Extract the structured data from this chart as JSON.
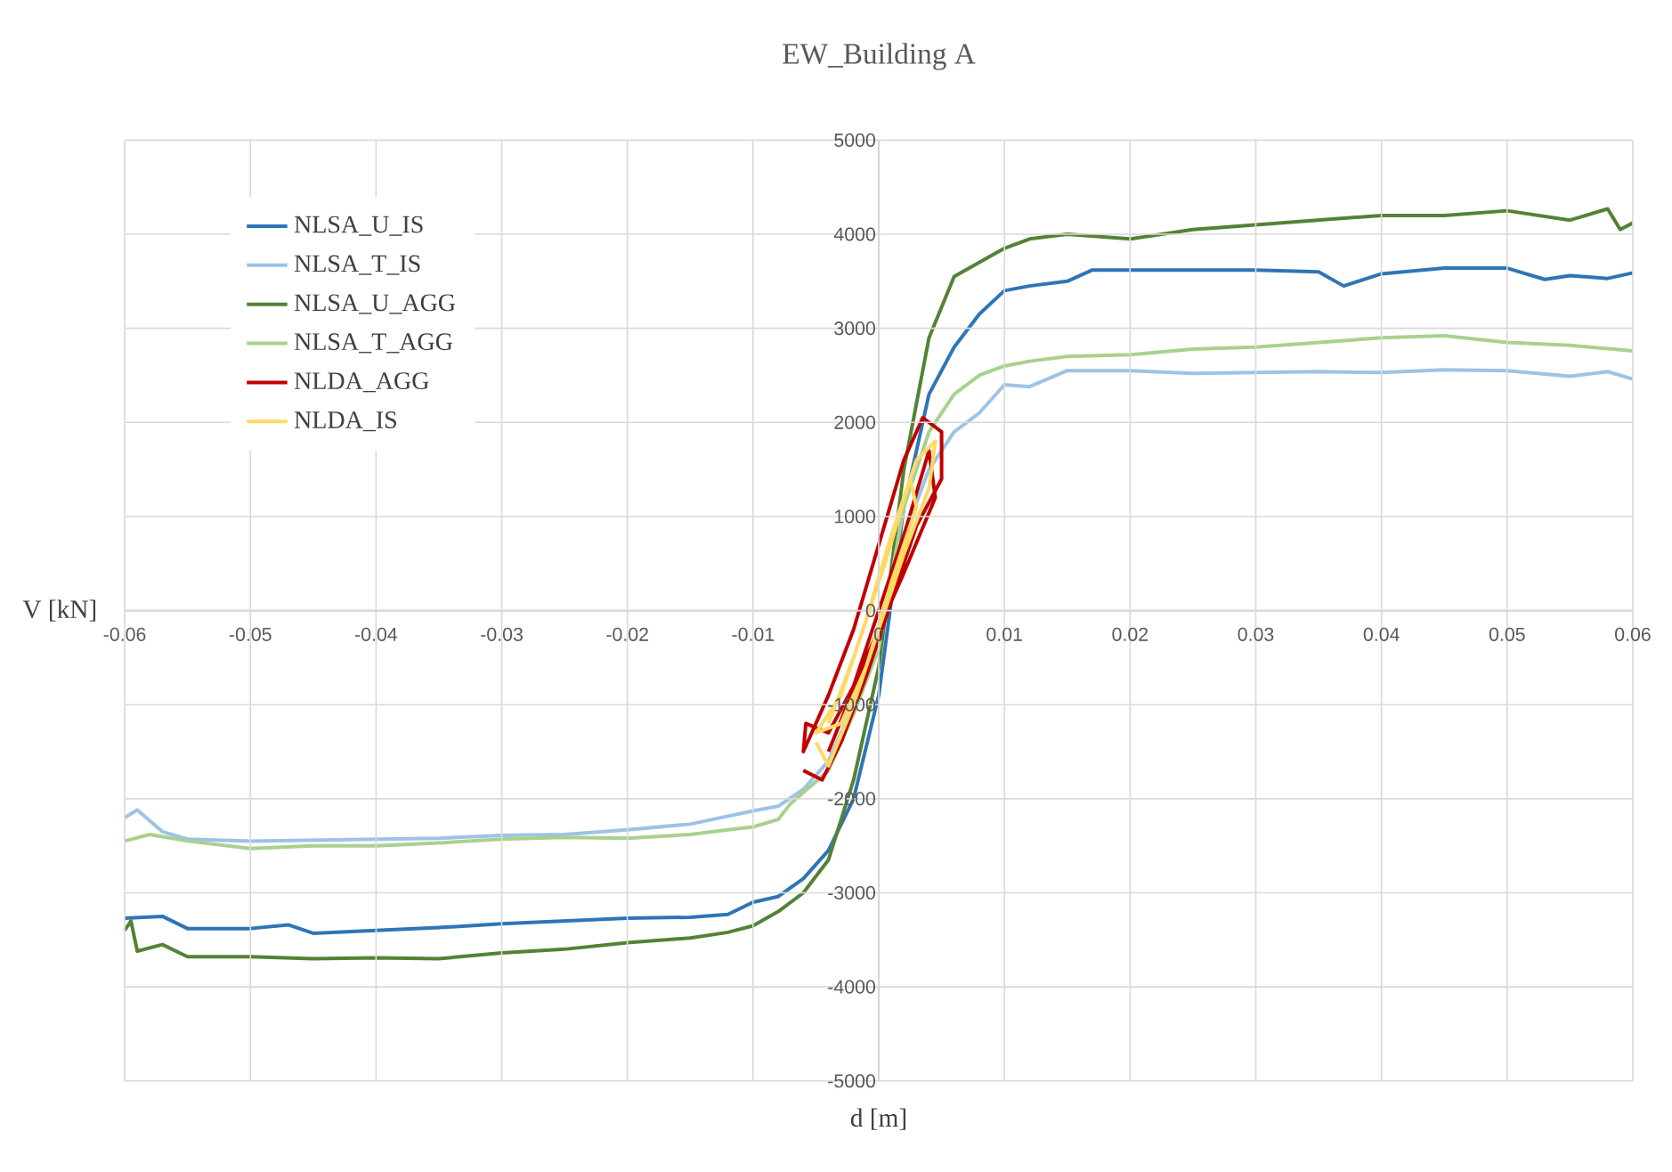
{
  "chart_data": {
    "type": "line",
    "title": "EW_Building A",
    "xlabel": "d [m]",
    "ylabel": "V [kN]",
    "xlim": [
      -0.06,
      0.06
    ],
    "ylim": [
      -5000,
      5000
    ],
    "xticks": [
      -0.06,
      -0.05,
      -0.04,
      -0.03,
      -0.02,
      -0.01,
      0,
      0.01,
      0.02,
      0.03,
      0.04,
      0.05,
      0.06
    ],
    "yticks": [
      -5000,
      -4000,
      -3000,
      -2000,
      -1000,
      0,
      1000,
      2000,
      3000,
      4000,
      5000
    ],
    "grid": true,
    "legend": "top left",
    "marker": "none",
    "line_style": "solid",
    "series": [
      {
        "name": "NLSA_U_IS",
        "color": "#2e75b6",
        "x": [
          -0.06,
          -0.057,
          -0.055,
          -0.05,
          -0.047,
          -0.045,
          -0.04,
          -0.035,
          -0.03,
          -0.025,
          -0.02,
          -0.015,
          -0.012,
          -0.01,
          -0.008,
          -0.006,
          -0.004,
          -0.002,
          0,
          0.002,
          0.004,
          0.006,
          0.008,
          0.01,
          0.012,
          0.015,
          0.017,
          0.02,
          0.025,
          0.03,
          0.035,
          0.037,
          0.04,
          0.045,
          0.05,
          0.053,
          0.055,
          0.058,
          0.06
        ],
        "values": [
          -3270,
          -3250,
          -3380,
          -3380,
          -3340,
          -3430,
          -3400,
          -3370,
          -3330,
          -3300,
          -3270,
          -3260,
          -3230,
          -3100,
          -3040,
          -2850,
          -2550,
          -2000,
          -900,
          1100,
          2300,
          2800,
          3150,
          3400,
          3450,
          3500,
          3620,
          3620,
          3620,
          3620,
          3600,
          3450,
          3580,
          3640,
          3640,
          3520,
          3560,
          3530,
          3590
        ]
      },
      {
        "name": "NLSA_T_IS",
        "color": "#9dc3e6",
        "x": [
          -0.06,
          -0.059,
          -0.057,
          -0.055,
          -0.05,
          -0.045,
          -0.04,
          -0.035,
          -0.03,
          -0.025,
          -0.02,
          -0.015,
          -0.01,
          -0.008,
          -0.006,
          -0.004,
          -0.002,
          0,
          0.002,
          0.004,
          0.006,
          0.008,
          0.01,
          0.012,
          0.015,
          0.02,
          0.025,
          0.03,
          0.035,
          0.04,
          0.045,
          0.05,
          0.055,
          0.058,
          0.06
        ],
        "values": [
          -2200,
          -2120,
          -2350,
          -2430,
          -2450,
          -2440,
          -2430,
          -2420,
          -2390,
          -2380,
          -2330,
          -2270,
          -2130,
          -2080,
          -1900,
          -1600,
          -1000,
          -300,
          800,
          1500,
          1900,
          2100,
          2400,
          2380,
          2550,
          2550,
          2520,
          2530,
          2540,
          2530,
          2560,
          2550,
          2490,
          2540,
          2460
        ]
      },
      {
        "name": "NLSA_U_AGG",
        "color": "#548235",
        "x": [
          -0.06,
          -0.0595,
          -0.059,
          -0.057,
          -0.055,
          -0.05,
          -0.045,
          -0.04,
          -0.035,
          -0.03,
          -0.025,
          -0.02,
          -0.015,
          -0.012,
          -0.01,
          -0.008,
          -0.006,
          -0.004,
          -0.002,
          0,
          0.002,
          0.004,
          0.006,
          0.008,
          0.01,
          0.012,
          0.015,
          0.02,
          0.025,
          0.03,
          0.035,
          0.04,
          0.045,
          0.05,
          0.055,
          0.058,
          0.059,
          0.06
        ],
        "values": [
          -3400,
          -3300,
          -3620,
          -3550,
          -3680,
          -3680,
          -3700,
          -3690,
          -3700,
          -3640,
          -3600,
          -3530,
          -3480,
          -3420,
          -3350,
          -3200,
          -3000,
          -2650,
          -1800,
          -600,
          1500,
          2900,
          3550,
          3700,
          3850,
          3950,
          4000,
          3950,
          4050,
          4100,
          4150,
          4200,
          4200,
          4250,
          4150,
          4270,
          4050,
          4120
        ]
      },
      {
        "name": "NLSA_T_AGG",
        "color": "#a9d18e",
        "x": [
          -0.06,
          -0.058,
          -0.055,
          -0.05,
          -0.045,
          -0.04,
          -0.035,
          -0.03,
          -0.025,
          -0.02,
          -0.015,
          -0.012,
          -0.01,
          -0.008,
          -0.007,
          -0.004,
          -0.002,
          0,
          0.002,
          0.004,
          0.006,
          0.008,
          0.01,
          0.012,
          0.015,
          0.02,
          0.025,
          0.03,
          0.035,
          0.04,
          0.045,
          0.05,
          0.055,
          0.06
        ],
        "values": [
          -2450,
          -2380,
          -2450,
          -2530,
          -2500,
          -2500,
          -2470,
          -2430,
          -2410,
          -2420,
          -2380,
          -2330,
          -2300,
          -2220,
          -2050,
          -1700,
          -1100,
          -400,
          1100,
          1900,
          2300,
          2500,
          2600,
          2650,
          2700,
          2720,
          2780,
          2800,
          2850,
          2900,
          2920,
          2850,
          2820,
          2760
        ]
      },
      {
        "name": "NLDA_AGG",
        "color": "#c00000",
        "x": [
          -0.006,
          -0.0045,
          -0.003,
          -0.001,
          0.001,
          0.003,
          0.005,
          0.005,
          0.0035,
          0.002,
          0,
          -0.002,
          -0.004,
          -0.006,
          -0.0058,
          -0.004,
          -0.002,
          0,
          0.002,
          0.004,
          0.0045,
          0.002,
          -0.001,
          -0.004
        ],
        "values": [
          -1700,
          -1800,
          -1400,
          -700,
          100,
          900,
          1400,
          1900,
          2050,
          1600,
          700,
          -200,
          -900,
          -1500,
          -1200,
          -1300,
          -800,
          0,
          800,
          1700,
          1200,
          400,
          -500,
          -1500
        ]
      },
      {
        "name": "NLDA_IS",
        "color": "#ffd966",
        "x": [
          -0.005,
          -0.004,
          -0.002,
          0,
          0.002,
          0.004,
          0.0045,
          0.003,
          0.001,
          -0.001,
          -0.003,
          -0.005,
          -0.003,
          -0.001,
          0.001,
          0.003,
          0.0025,
          0.0005,
          -0.002,
          -0.004
        ],
        "values": [
          -1400,
          -1650,
          -1000,
          -200,
          600,
          1300,
          1800,
          1600,
          800,
          -100,
          -900,
          -1300,
          -1200,
          -600,
          300,
          1100,
          1400,
          500,
          -500,
          -1200
        ]
      }
    ]
  }
}
